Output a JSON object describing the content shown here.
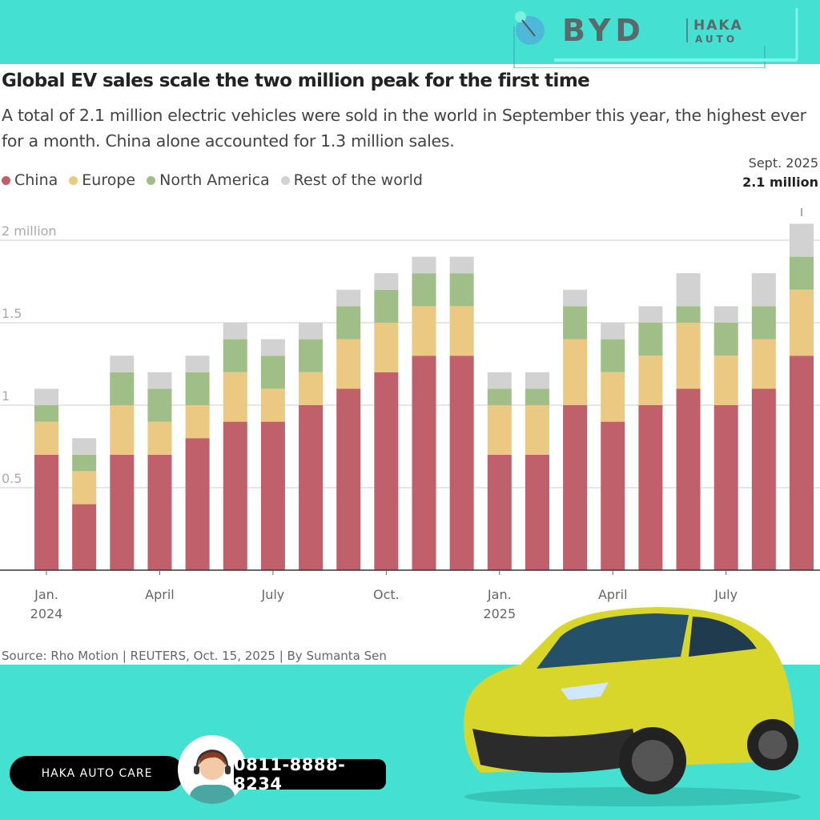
{
  "brand": {
    "logo_text": "BYD",
    "partner_logo_line1": "HAKA",
    "partner_logo_line2": "AUTO"
  },
  "title": "Global EV sales scale the two million peak for the first time",
  "subtitle": "A total of 2.1 million electric vehicles were sold in the world in September this year, the highest ever for a month. China alone accounted for 1.3 million sales.",
  "annotation": {
    "label": "Sept. 2025",
    "value": "2.1 million"
  },
  "source": "Source: Rho Motion | REUTERS, Oct. 15, 2025 | By Sumanta Sen",
  "footer": {
    "care_label": "HAKA AUTO CARE",
    "phone": "0811-8888-8234"
  },
  "colors": {
    "China": "#c0606a",
    "Europe": "#ecc983",
    "North America": "#a0bf88",
    "Rest of the world": "#d2d2d2",
    "background": "#44e0d1"
  },
  "chart_data": {
    "type": "bar",
    "stacked": true,
    "title": "Global EV sales scale the two million peak for the first time",
    "ylabel": "",
    "ylim": [
      0,
      2.1
    ],
    "yticks": [
      {
        "value": 0.5,
        "label": "0.5"
      },
      {
        "value": 1,
        "label": "1"
      },
      {
        "value": 1.5,
        "label": "1.5"
      },
      {
        "value": 2,
        "label": "2 million"
      }
    ],
    "grid": true,
    "legend": "top-left",
    "categories": [
      "Jan 2024",
      "Feb 2024",
      "Mar 2024",
      "Apr 2024",
      "May 2024",
      "Jun 2024",
      "Jul 2024",
      "Aug 2024",
      "Sep 2024",
      "Oct 2024",
      "Nov 2024",
      "Dec 2024",
      "Jan 2025",
      "Feb 2025",
      "Mar 2025",
      "Apr 2025",
      "May 2025",
      "Jun 2025",
      "Jul 2025",
      "Aug 2025",
      "Sep 2025"
    ],
    "xticks": [
      {
        "index": 0,
        "label": "Jan.",
        "sub": "2024"
      },
      {
        "index": 3,
        "label": "April",
        "sub": ""
      },
      {
        "index": 6,
        "label": "July",
        "sub": ""
      },
      {
        "index": 9,
        "label": "Oct.",
        "sub": ""
      },
      {
        "index": 12,
        "label": "Jan.",
        "sub": "2025"
      },
      {
        "index": 15,
        "label": "April",
        "sub": ""
      },
      {
        "index": 18,
        "label": "July",
        "sub": ""
      }
    ],
    "series": [
      {
        "name": "China",
        "values": [
          0.7,
          0.4,
          0.7,
          0.7,
          0.8,
          0.9,
          0.9,
          1.0,
          1.1,
          1.2,
          1.3,
          1.3,
          0.7,
          0.7,
          1.0,
          0.9,
          1.0,
          1.1,
          1.0,
          1.1,
          1.3
        ]
      },
      {
        "name": "Europe",
        "values": [
          0.2,
          0.2,
          0.3,
          0.2,
          0.2,
          0.3,
          0.2,
          0.2,
          0.3,
          0.3,
          0.3,
          0.3,
          0.3,
          0.3,
          0.4,
          0.3,
          0.3,
          0.4,
          0.3,
          0.3,
          0.4
        ]
      },
      {
        "name": "North America",
        "values": [
          0.1,
          0.1,
          0.2,
          0.2,
          0.2,
          0.2,
          0.2,
          0.2,
          0.2,
          0.2,
          0.2,
          0.2,
          0.1,
          0.1,
          0.2,
          0.2,
          0.2,
          0.1,
          0.2,
          0.2,
          0.2
        ]
      },
      {
        "name": "Rest of the world",
        "values": [
          0.1,
          0.1,
          0.1,
          0.1,
          0.1,
          0.1,
          0.1,
          0.1,
          0.1,
          0.1,
          0.1,
          0.1,
          0.1,
          0.1,
          0.1,
          0.1,
          0.1,
          0.2,
          0.1,
          0.2,
          0.2
        ]
      }
    ]
  }
}
